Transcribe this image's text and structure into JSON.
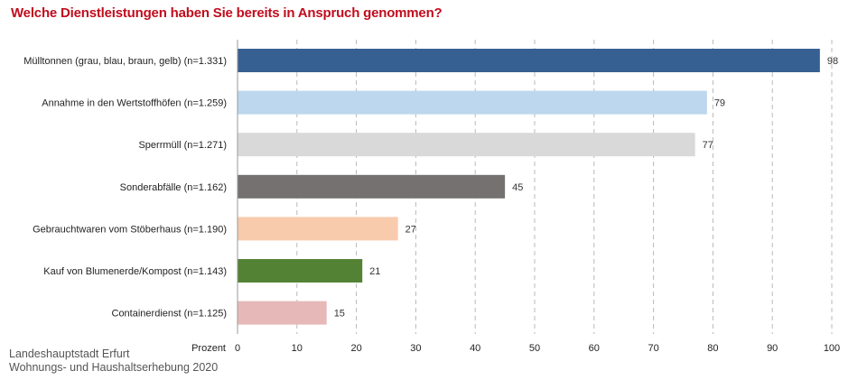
{
  "title": "Welche Dienstleistungen haben Sie bereits in Anspruch genommen?",
  "source": {
    "line1": "Landeshauptstadt Erfurt",
    "line2": "Wohnungs- und Haushaltserhebung 2020"
  },
  "chart_data": {
    "type": "bar",
    "orientation": "horizontal",
    "title": "Welche Dienstleistungen haben Sie bereits in Anspruch genommen?",
    "xlabel": "Prozent",
    "xlim": [
      0,
      100
    ],
    "xticks": [
      0,
      10,
      20,
      30,
      40,
      50,
      60,
      70,
      80,
      90,
      100
    ],
    "grid": "vertical-dashed",
    "categories": [
      "Mülltonnen (grau, blau, braun, gelb) (n=1.331)",
      "Annahme in den Wertstoffhöfen (n=1.259)",
      "Sperrmüll (n=1.271)",
      "Sonderabfälle (n=1.162)",
      "Gebrauchtwaren vom Stöberhaus (n=1.190)",
      "Kauf von Blumenerde/Kompost (n=1.143)",
      "Containerdienst (n=1.125)"
    ],
    "values": [
      98,
      79,
      77,
      45,
      27,
      21,
      15
    ],
    "value_labels": [
      "98",
      "79",
      "77",
      "45",
      "27",
      "21",
      "15"
    ],
    "colors": [
      "#376092",
      "#bdd7ee",
      "#d9d9d9",
      "#767171",
      "#f8cbad",
      "#548235",
      "#e6b9b8"
    ]
  }
}
